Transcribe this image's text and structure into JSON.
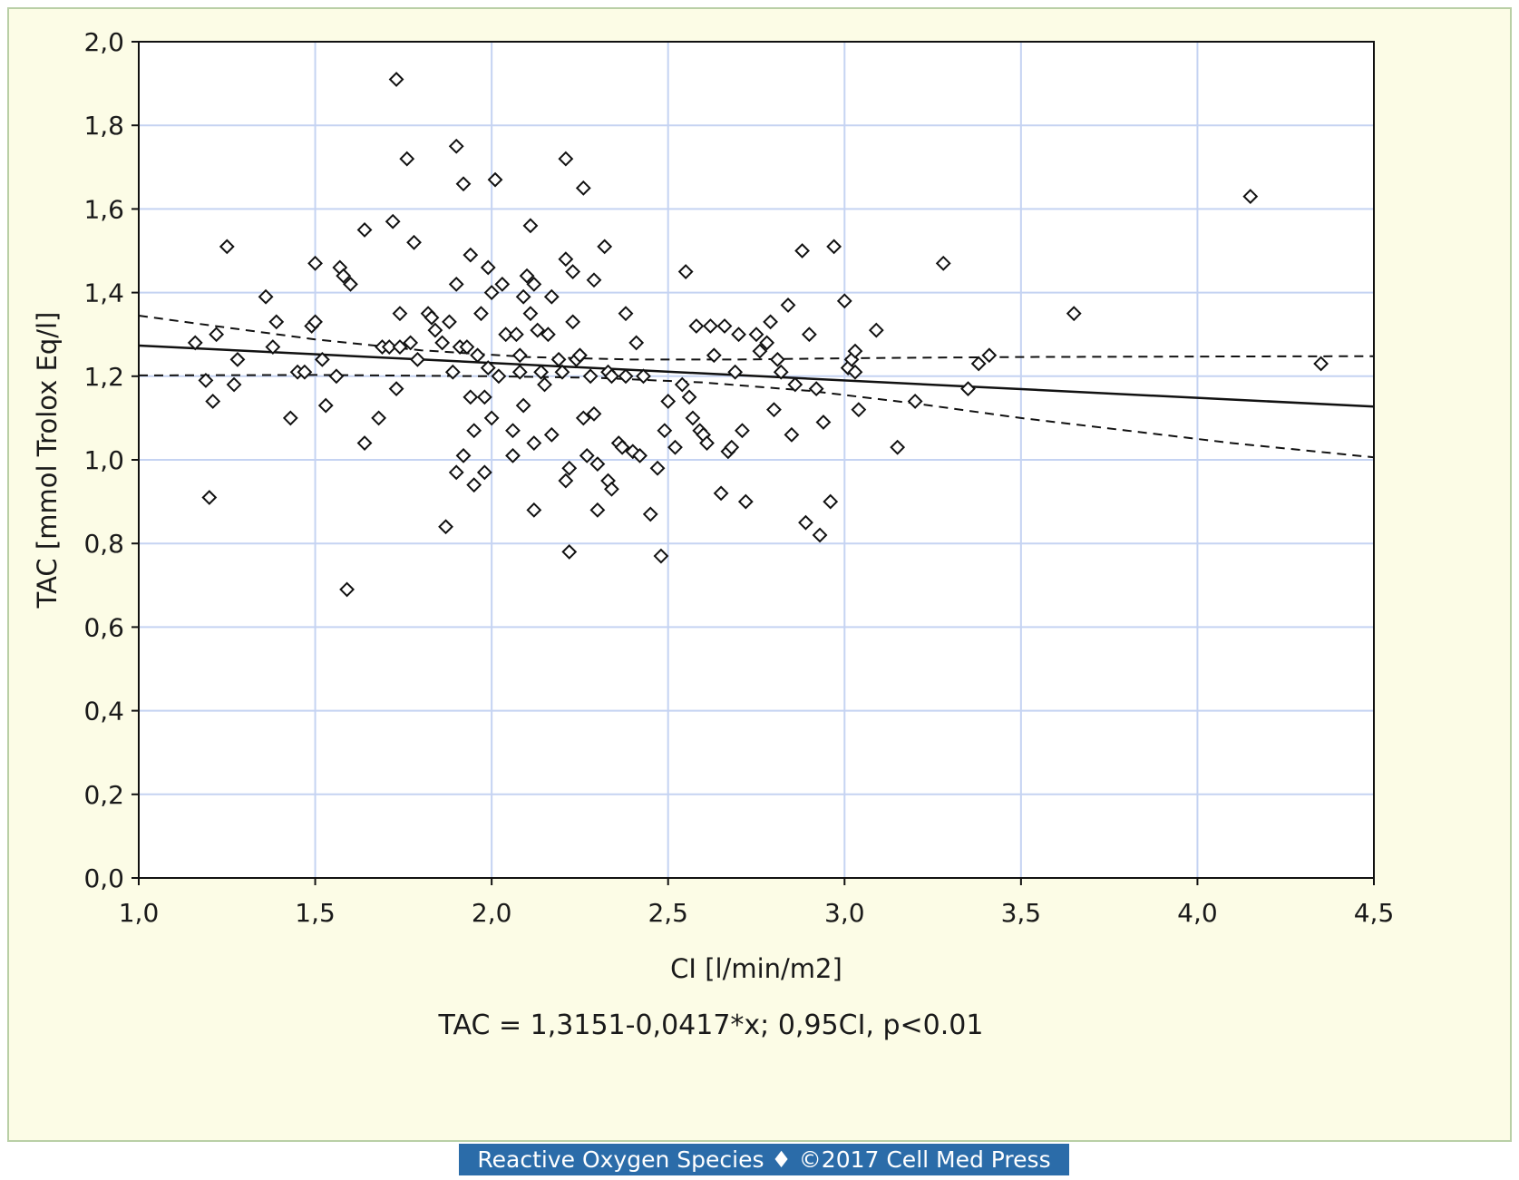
{
  "chart_data": {
    "type": "scatter",
    "xlabel": "CI [l/min/m2]",
    "ylabel": "TAC [mmol Trolox Eq/l]",
    "equation": "TAC = 1,3151-0,0417*x; 0,95CI, p<0.01",
    "xlim": [
      1.0,
      4.5
    ],
    "ylim": [
      0.0,
      2.0
    ],
    "x_ticks": [
      1.0,
      1.5,
      2.0,
      2.5,
      3.0,
      3.5,
      4.0,
      4.5
    ],
    "x_tick_labels": [
      "1,0",
      "1,5",
      "2,0",
      "2,5",
      "3,0",
      "3,5",
      "4,0",
      "4,5"
    ],
    "y_ticks": [
      0.0,
      0.2,
      0.4,
      0.6,
      0.8,
      1.0,
      1.2,
      1.4,
      1.6,
      1.8,
      2.0
    ],
    "y_tick_labels": [
      "0,0",
      "0,2",
      "0,4",
      "0,6",
      "0,8",
      "1,0",
      "1,2",
      "1,4",
      "1,6",
      "1,8",
      "2,0"
    ],
    "grid": true,
    "marker": "diamond",
    "points": [
      [
        1.16,
        1.28
      ],
      [
        1.19,
        1.19
      ],
      [
        1.2,
        0.91
      ],
      [
        1.21,
        1.14
      ],
      [
        1.22,
        1.3
      ],
      [
        1.25,
        1.51
      ],
      [
        1.27,
        1.18
      ],
      [
        1.28,
        1.24
      ],
      [
        1.36,
        1.39
      ],
      [
        1.38,
        1.27
      ],
      [
        1.39,
        1.33
      ],
      [
        1.43,
        1.1
      ],
      [
        1.45,
        1.21
      ],
      [
        1.47,
        1.21
      ],
      [
        1.49,
        1.32
      ],
      [
        1.5,
        1.33
      ],
      [
        1.5,
        1.47
      ],
      [
        1.52,
        1.24
      ],
      [
        1.53,
        1.13
      ],
      [
        1.56,
        1.2
      ],
      [
        1.57,
        1.46
      ],
      [
        1.58,
        1.44
      ],
      [
        1.59,
        0.69
      ],
      [
        1.6,
        1.42
      ],
      [
        1.64,
        1.04
      ],
      [
        1.64,
        1.55
      ],
      [
        1.68,
        1.1
      ],
      [
        1.69,
        1.27
      ],
      [
        1.71,
        1.27
      ],
      [
        1.72,
        1.57
      ],
      [
        1.73,
        1.17
      ],
      [
        1.73,
        1.91
      ],
      [
        1.74,
        1.27
      ],
      [
        1.74,
        1.35
      ],
      [
        1.76,
        1.72
      ],
      [
        1.77,
        1.28
      ],
      [
        1.78,
        1.52
      ],
      [
        1.79,
        1.24
      ],
      [
        1.82,
        1.35
      ],
      [
        1.83,
        1.34
      ],
      [
        1.84,
        1.31
      ],
      [
        1.86,
        1.28
      ],
      [
        1.87,
        0.84
      ],
      [
        1.88,
        1.33
      ],
      [
        1.89,
        1.21
      ],
      [
        1.9,
        0.97
      ],
      [
        1.9,
        1.42
      ],
      [
        1.9,
        1.75
      ],
      [
        1.91,
        1.27
      ],
      [
        1.92,
        1.01
      ],
      [
        1.92,
        1.66
      ],
      [
        1.93,
        1.27
      ],
      [
        1.94,
        1.15
      ],
      [
        1.94,
        1.49
      ],
      [
        1.95,
        0.94
      ],
      [
        1.95,
        1.07
      ],
      [
        1.96,
        1.25
      ],
      [
        1.97,
        1.35
      ],
      [
        1.98,
        0.97
      ],
      [
        1.98,
        1.15
      ],
      [
        1.99,
        1.22
      ],
      [
        1.99,
        1.46
      ],
      [
        2.0,
        1.1
      ],
      [
        2.0,
        1.4
      ],
      [
        2.01,
        1.67
      ],
      [
        2.02,
        1.2
      ],
      [
        2.03,
        1.42
      ],
      [
        2.04,
        1.3
      ],
      [
        2.06,
        1.01
      ],
      [
        2.06,
        1.07
      ],
      [
        2.07,
        1.3
      ],
      [
        2.08,
        1.21
      ],
      [
        2.08,
        1.25
      ],
      [
        2.09,
        1.13
      ],
      [
        2.09,
        1.39
      ],
      [
        2.1,
        1.44
      ],
      [
        2.11,
        1.35
      ],
      [
        2.11,
        1.56
      ],
      [
        2.12,
        0.88
      ],
      [
        2.12,
        1.04
      ],
      [
        2.12,
        1.42
      ],
      [
        2.13,
        1.31
      ],
      [
        2.14,
        1.21
      ],
      [
        2.15,
        1.18
      ],
      [
        2.16,
        1.3
      ],
      [
        2.17,
        1.39
      ],
      [
        2.17,
        1.06
      ],
      [
        2.19,
        1.24
      ],
      [
        2.2,
        1.21
      ],
      [
        2.21,
        0.95
      ],
      [
        2.21,
        1.48
      ],
      [
        2.21,
        1.72
      ],
      [
        2.22,
        0.78
      ],
      [
        2.22,
        0.98
      ],
      [
        2.23,
        1.33
      ],
      [
        2.23,
        1.45
      ],
      [
        2.24,
        1.24
      ],
      [
        2.25,
        1.25
      ],
      [
        2.26,
        1.1
      ],
      [
        2.26,
        1.65
      ],
      [
        2.27,
        1.01
      ],
      [
        2.28,
        1.2
      ],
      [
        2.29,
        1.43
      ],
      [
        2.29,
        1.11
      ],
      [
        2.3,
        0.88
      ],
      [
        2.3,
        0.99
      ],
      [
        2.32,
        1.51
      ],
      [
        2.33,
        0.95
      ],
      [
        2.33,
        1.21
      ],
      [
        2.34,
        0.93
      ],
      [
        2.34,
        1.2
      ],
      [
        2.36,
        1.04
      ],
      [
        2.37,
        1.03
      ],
      [
        2.38,
        1.2
      ],
      [
        2.38,
        1.35
      ],
      [
        2.4,
        1.02
      ],
      [
        2.41,
        1.28
      ],
      [
        2.42,
        1.01
      ],
      [
        2.43,
        1.2
      ],
      [
        2.45,
        0.87
      ],
      [
        2.47,
        0.98
      ],
      [
        2.48,
        0.77
      ],
      [
        2.49,
        1.07
      ],
      [
        2.5,
        1.14
      ],
      [
        2.52,
        1.03
      ],
      [
        2.54,
        1.18
      ],
      [
        2.55,
        1.45
      ],
      [
        2.56,
        1.15
      ],
      [
        2.57,
        1.1
      ],
      [
        2.58,
        1.32
      ],
      [
        2.59,
        1.07
      ],
      [
        2.6,
        1.06
      ],
      [
        2.61,
        1.04
      ],
      [
        2.62,
        1.32
      ],
      [
        2.63,
        1.25
      ],
      [
        2.65,
        0.92
      ],
      [
        2.66,
        1.32
      ],
      [
        2.67,
        1.02
      ],
      [
        2.68,
        1.03
      ],
      [
        2.69,
        1.21
      ],
      [
        2.7,
        1.3
      ],
      [
        2.71,
        1.07
      ],
      [
        2.72,
        0.9
      ],
      [
        2.75,
        1.3
      ],
      [
        2.76,
        1.26
      ],
      [
        2.78,
        1.28
      ],
      [
        2.79,
        1.33
      ],
      [
        2.8,
        1.12
      ],
      [
        2.81,
        1.24
      ],
      [
        2.82,
        1.21
      ],
      [
        2.84,
        1.37
      ],
      [
        2.85,
        1.06
      ],
      [
        2.86,
        1.18
      ],
      [
        2.88,
        1.5
      ],
      [
        2.89,
        0.85
      ],
      [
        2.9,
        1.3
      ],
      [
        2.92,
        1.17
      ],
      [
        2.93,
        0.82
      ],
      [
        2.94,
        1.09
      ],
      [
        2.96,
        0.9
      ],
      [
        2.97,
        1.51
      ],
      [
        3.0,
        1.38
      ],
      [
        3.01,
        1.22
      ],
      [
        3.02,
        1.24
      ],
      [
        3.03,
        1.26
      ],
      [
        3.03,
        1.21
      ],
      [
        3.04,
        1.12
      ],
      [
        3.09,
        1.31
      ],
      [
        3.15,
        1.03
      ],
      [
        3.2,
        1.14
      ],
      [
        3.28,
        1.47
      ],
      [
        3.35,
        1.17
      ],
      [
        3.38,
        1.23
      ],
      [
        3.41,
        1.25
      ],
      [
        3.65,
        1.35
      ],
      [
        4.15,
        1.63
      ],
      [
        4.35,
        1.23
      ]
    ],
    "regression_line": [
      [
        1.0,
        1.2734
      ],
      [
        4.5,
        1.1274
      ]
    ],
    "ci_upper": [
      [
        1.0,
        1.345
      ],
      [
        1.2,
        1.322
      ],
      [
        1.5,
        1.288
      ],
      [
        1.8,
        1.262
      ],
      [
        2.1,
        1.246
      ],
      [
        2.4,
        1.24
      ],
      [
        2.7,
        1.24
      ],
      [
        3.0,
        1.243
      ],
      [
        3.5,
        1.246
      ],
      [
        4.0,
        1.247
      ],
      [
        4.5,
        1.248
      ]
    ],
    "ci_lower": [
      [
        1.0,
        1.202
      ],
      [
        1.5,
        1.203
      ],
      [
        2.0,
        1.2
      ],
      [
        2.3,
        1.196
      ],
      [
        2.6,
        1.185
      ],
      [
        2.9,
        1.165
      ],
      [
        3.2,
        1.135
      ],
      [
        3.5,
        1.1
      ],
      [
        3.8,
        1.07
      ],
      [
        4.1,
        1.04
      ],
      [
        4.5,
        1.006
      ]
    ]
  },
  "credit": "Reactive Oxygen Species ♦ ©2017 Cell Med Press"
}
